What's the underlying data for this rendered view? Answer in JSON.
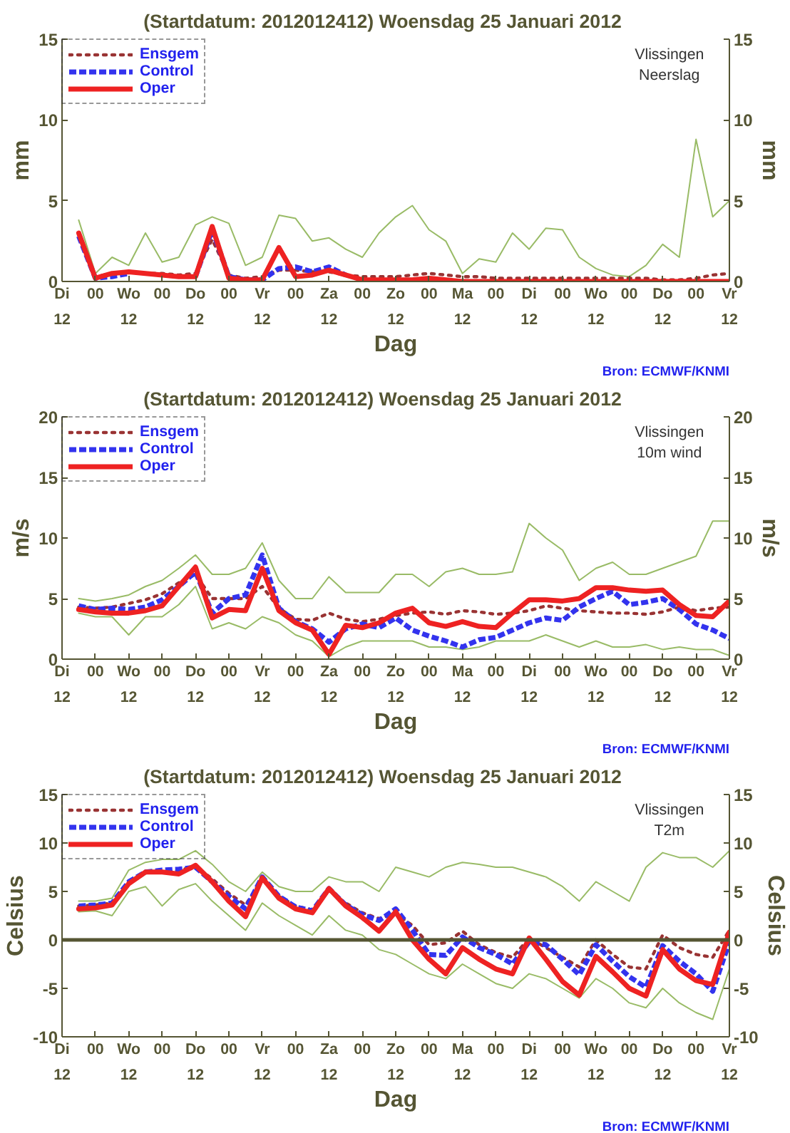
{
  "chart_data": [
    {
      "type": "line",
      "title": "(Startdatum: 2012012412)   Woensdag  25 Januari   2012",
      "xlabel": "Dag",
      "ylabel": "mm",
      "y2label": "mm",
      "annotations": [
        "Vlissingen\nNeerslag",
        "Bron: ECMWF/KNMI"
      ],
      "x": [
        "2012-01-24T18:00",
        "2012-01-25T00:00",
        "2012-01-25T06:00",
        "2012-01-25T12:00",
        "2012-01-25T18:00",
        "2012-01-26T00:00",
        "2012-01-26T06:00",
        "2012-01-26T12:00",
        "2012-01-26T18:00",
        "2012-01-27T00:00",
        "2012-01-27T06:00",
        "2012-01-27T12:00",
        "2012-01-27T18:00",
        "2012-01-28T00:00",
        "2012-01-28T06:00",
        "2012-01-28T12:00",
        "2012-01-28T18:00",
        "2012-01-29T00:00",
        "2012-01-29T06:00",
        "2012-01-29T12:00",
        "2012-01-29T18:00",
        "2012-01-30T00:00",
        "2012-01-30T06:00",
        "2012-01-30T12:00",
        "2012-01-30T18:00",
        "2012-01-31T00:00",
        "2012-01-31T06:00",
        "2012-01-31T12:00",
        "2012-01-31T18:00",
        "2012-02-01T00:00",
        "2012-02-01T06:00",
        "2012-02-01T12:00",
        "2012-02-01T18:00",
        "2012-02-02T00:00",
        "2012-02-02T06:00",
        "2012-02-02T12:00",
        "2012-02-02T18:00",
        "2012-02-03T00:00",
        "2012-02-03T06:00",
        "2012-02-03T12:00"
      ],
      "xlim": [
        "2012-01-24T12:00",
        "2012-02-03T12:00"
      ],
      "xticks": [
        {
          "value": "2012-01-24T12:00",
          "label": "Di\n12"
        },
        {
          "value": "2012-01-25T00:00",
          "label": "00"
        },
        {
          "value": "2012-01-25T12:00",
          "label": "Wo\n12"
        },
        {
          "value": "2012-01-26T00:00",
          "label": "00"
        },
        {
          "value": "2012-01-26T12:00",
          "label": "Do\n12"
        },
        {
          "value": "2012-01-27T00:00",
          "label": "00"
        },
        {
          "value": "2012-01-27T12:00",
          "label": "Vr\n12"
        },
        {
          "value": "2012-01-28T00:00",
          "label": "00"
        },
        {
          "value": "2012-01-28T12:00",
          "label": "Za\n12"
        },
        {
          "value": "2012-01-29T00:00",
          "label": "00"
        },
        {
          "value": "2012-01-29T12:00",
          "label": "Zo\n12"
        },
        {
          "value": "2012-01-30T00:00",
          "label": "00"
        },
        {
          "value": "2012-01-30T12:00",
          "label": "Ma\n12"
        },
        {
          "value": "2012-01-31T00:00",
          "label": "00"
        },
        {
          "value": "2012-01-31T12:00",
          "label": "Di\n12"
        },
        {
          "value": "2012-02-01T00:00",
          "label": "00"
        },
        {
          "value": "2012-02-01T12:00",
          "label": "Wo\n12"
        },
        {
          "value": "2012-02-02T00:00",
          "label": "00"
        },
        {
          "value": "2012-02-02T12:00",
          "label": "Do\n12"
        },
        {
          "value": "2012-02-03T00:00",
          "label": "00"
        },
        {
          "value": "2012-02-03T12:00",
          "label": "Vr\n12"
        }
      ],
      "ylim": [
        0,
        15
      ],
      "yticks": [
        0,
        5,
        10,
        15
      ],
      "y2lim": [
        0,
        15
      ],
      "y2ticks": [
        0,
        5,
        10,
        15
      ],
      "grid": false,
      "legend": "top left",
      "marker": "none",
      "series": [
        {
          "color": "#99bb66",
          "line_style": "solid",
          "values": [
            3.8,
            0.5,
            1.5,
            1.0,
            3.0,
            1.2,
            1.5,
            3.5,
            4.0,
            3.6,
            1.0,
            1.5,
            4.1,
            3.9,
            2.5,
            2.7,
            2.0,
            1.5,
            3.0,
            4.0,
            4.7,
            3.2,
            2.5,
            0.5,
            1.4,
            1.2,
            3.0,
            2.0,
            3.3,
            3.2,
            1.5,
            0.8,
            0.4,
            0.3,
            1.0,
            2.3,
            1.5,
            8.8,
            4.0,
            5.0
          ]
        },
        {
          "name": "Ensgem",
          "color": "#993333",
          "line_style": "dotted",
          "values": [
            2.9,
            0.3,
            0.5,
            0.6,
            0.5,
            0.5,
            0.4,
            0.5,
            2.6,
            0.4,
            0.2,
            0.3,
            0.7,
            0.7,
            0.6,
            0.6,
            0.4,
            0.3,
            0.3,
            0.3,
            0.4,
            0.5,
            0.4,
            0.3,
            0.3,
            0.2,
            0.2,
            0.2,
            0.2,
            0.2,
            0.2,
            0.2,
            0.2,
            0.2,
            0.2,
            0.1,
            0.1,
            0.2,
            0.4,
            0.5
          ]
        },
        {
          "name": "Control",
          "color": "#3333ee",
          "line_style": "dashed",
          "values": [
            2.8,
            0.2,
            0.3,
            0.5,
            null,
            null,
            null,
            0.3,
            3.2,
            0.3,
            0.1,
            0.1,
            0.8,
            0.9,
            0.6,
            0.9,
            0.4,
            null,
            null,
            null,
            null,
            null,
            null,
            null,
            null,
            null,
            null,
            null,
            null,
            null,
            null,
            null,
            null,
            null,
            null,
            null,
            null,
            null,
            null,
            null
          ]
        },
        {
          "name": "Oper",
          "color": "#ee2222",
          "line_style": "solid",
          "values": [
            3.0,
            0.2,
            0.5,
            0.6,
            0.5,
            0.4,
            0.3,
            0.3,
            3.4,
            0.2,
            0.1,
            0.1,
            2.1,
            0.3,
            0.4,
            0.7,
            0.4,
            0.1,
            0.1,
            0.1,
            0.1,
            0.2,
            0.1,
            0,
            0,
            0,
            0,
            0,
            0,
            0,
            0,
            0,
            0,
            0,
            0,
            0,
            0,
            0,
            0,
            0
          ]
        }
      ]
    },
    {
      "type": "line",
      "title": "(Startdatum: 2012012412)   Woensdag  25 Januari   2012",
      "xlabel": "Dag",
      "ylabel": "m/s",
      "y2label": "m/s",
      "annotations": [
        "Vlissingen\n10m wind",
        "Bron: ECMWF/KNMI"
      ],
      "x": [
        "2012-01-24T18:00",
        "2012-01-25T00:00",
        "2012-01-25T06:00",
        "2012-01-25T12:00",
        "2012-01-25T18:00",
        "2012-01-26T00:00",
        "2012-01-26T06:00",
        "2012-01-26T12:00",
        "2012-01-26T18:00",
        "2012-01-27T00:00",
        "2012-01-27T06:00",
        "2012-01-27T12:00",
        "2012-01-27T18:00",
        "2012-01-28T00:00",
        "2012-01-28T06:00",
        "2012-01-28T12:00",
        "2012-01-28T18:00",
        "2012-01-29T00:00",
        "2012-01-29T06:00",
        "2012-01-29T12:00",
        "2012-01-29T18:00",
        "2012-01-30T00:00",
        "2012-01-30T06:00",
        "2012-01-30T12:00",
        "2012-01-30T18:00",
        "2012-01-31T00:00",
        "2012-01-31T06:00",
        "2012-01-31T12:00",
        "2012-01-31T18:00",
        "2012-02-01T00:00",
        "2012-02-01T06:00",
        "2012-02-01T12:00",
        "2012-02-01T18:00",
        "2012-02-02T00:00",
        "2012-02-02T06:00",
        "2012-02-02T12:00",
        "2012-02-02T18:00",
        "2012-02-03T00:00",
        "2012-02-03T06:00",
        "2012-02-03T12:00"
      ],
      "xlim": [
        "2012-01-24T12:00",
        "2012-02-03T12:00"
      ],
      "xticks": [
        {
          "value": "2012-01-24T12:00",
          "label": "Di\n12"
        },
        {
          "value": "2012-01-25T00:00",
          "label": "00"
        },
        {
          "value": "2012-01-25T12:00",
          "label": "Wo\n12"
        },
        {
          "value": "2012-01-26T00:00",
          "label": "00"
        },
        {
          "value": "2012-01-26T12:00",
          "label": "Do\n12"
        },
        {
          "value": "2012-01-27T00:00",
          "label": "00"
        },
        {
          "value": "2012-01-27T12:00",
          "label": "Vr\n12"
        },
        {
          "value": "2012-01-28T00:00",
          "label": "00"
        },
        {
          "value": "2012-01-28T12:00",
          "label": "Za\n12"
        },
        {
          "value": "2012-01-29T00:00",
          "label": "00"
        },
        {
          "value": "2012-01-29T12:00",
          "label": "Zo\n12"
        },
        {
          "value": "2012-01-30T00:00",
          "label": "00"
        },
        {
          "value": "2012-01-30T12:00",
          "label": "Ma\n12"
        },
        {
          "value": "2012-01-31T00:00",
          "label": "00"
        },
        {
          "value": "2012-01-31T12:00",
          "label": "Di\n12"
        },
        {
          "value": "2012-02-01T00:00",
          "label": "00"
        },
        {
          "value": "2012-02-01T12:00",
          "label": "Wo\n12"
        },
        {
          "value": "2012-02-02T00:00",
          "label": "00"
        },
        {
          "value": "2012-02-02T12:00",
          "label": "Do\n12"
        },
        {
          "value": "2012-02-03T00:00",
          "label": "00"
        },
        {
          "value": "2012-02-03T12:00",
          "label": "Vr\n12"
        }
      ],
      "ylim": [
        0,
        20
      ],
      "yticks": [
        0,
        5,
        10,
        15,
        20
      ],
      "y2lim": [
        0,
        20
      ],
      "y2ticks": [
        0,
        5,
        10,
        15,
        20
      ],
      "grid": false,
      "legend": "top left",
      "marker": "none",
      "series": [
        {
          "color": "#99bb66",
          "line_style": "solid",
          "values": [
            5.0,
            4.8,
            5.0,
            5.3,
            6.0,
            6.5,
            7.5,
            8.6,
            7.0,
            7.0,
            7.5,
            9.6,
            6.5,
            5.0,
            5.0,
            6.8,
            5.5,
            5.5,
            5.5,
            7.0,
            7.0,
            6.0,
            7.2,
            7.5,
            7.0,
            7.0,
            7.2,
            11.2,
            10.0,
            9.0,
            6.5,
            7.5,
            8.0,
            7.0,
            7.0,
            7.5,
            8.0,
            8.5,
            11.4,
            11.4
          ]
        },
        {
          "color": "#99bb66",
          "line_style": "solid",
          "values": [
            3.8,
            3.5,
            3.5,
            2.0,
            3.5,
            3.5,
            4.5,
            6.0,
            2.5,
            3.0,
            2.5,
            3.5,
            3.0,
            2.0,
            1.5,
            0.2,
            1.0,
            1.5,
            1.5,
            1.5,
            1.5,
            1.0,
            1.0,
            0.8,
            1.0,
            1.5,
            1.5,
            1.5,
            2.0,
            1.5,
            1.0,
            1.5,
            1.0,
            1.0,
            1.2,
            0.8,
            1.0,
            0.8,
            0.8,
            0.3
          ]
        },
        {
          "name": "Ensgem",
          "color": "#993333",
          "line_style": "dotted",
          "values": [
            4.3,
            4.2,
            4.3,
            4.6,
            4.9,
            5.4,
            6.3,
            7.0,
            5.0,
            5.0,
            5.0,
            6.0,
            4.2,
            3.3,
            3.2,
            3.8,
            3.3,
            3.1,
            3.3,
            3.6,
            3.8,
            3.9,
            3.7,
            4.0,
            3.9,
            3.7,
            3.8,
            4.0,
            4.4,
            4.2,
            4.0,
            3.9,
            3.8,
            3.8,
            3.7,
            3.9,
            4.3,
            4.0,
            4.2,
            4.3
          ]
        },
        {
          "name": "Control",
          "color": "#3333ee",
          "line_style": "dashed",
          "values": [
            4.4,
            4.1,
            4.2,
            4.1,
            4.3,
            4.9,
            6.0,
            7.2,
            3.8,
            5.0,
            5.3,
            8.6,
            4.2,
            3.1,
            2.5,
            1.4,
            2.5,
            2.9,
            2.6,
            3.4,
            2.4,
            1.9,
            1.5,
            1.0,
            1.6,
            1.8,
            2.4,
            3.0,
            3.4,
            3.2,
            4.3,
            5.0,
            5.6,
            4.5,
            4.7,
            5.0,
            4.1,
            2.9,
            2.4,
            1.7
          ]
        },
        {
          "name": "Oper",
          "color": "#ee2222",
          "line_style": "solid",
          "values": [
            4.1,
            3.9,
            3.8,
            3.8,
            4.0,
            4.4,
            6.0,
            7.6,
            3.4,
            4.1,
            4.0,
            7.5,
            4.0,
            3.0,
            2.4,
            0.4,
            2.8,
            2.6,
            3.0,
            3.8,
            4.2,
            3.0,
            2.7,
            3.1,
            2.7,
            2.6,
            3.8,
            4.9,
            4.9,
            4.8,
            5.0,
            5.9,
            5.9,
            5.7,
            5.6,
            5.7,
            4.5,
            3.6,
            3.5,
            4.8
          ]
        }
      ]
    },
    {
      "type": "line",
      "title": "(Startdatum: 2012012412)   Woensdag  25 Januari   2012",
      "xlabel": "Dag",
      "ylabel": "Celsius",
      "y2label": "Celsius",
      "annotations": [
        "Vlissingen\nT2m",
        "Bron: ECMWF/KNMI"
      ],
      "x": [
        "2012-01-24T18:00",
        "2012-01-25T00:00",
        "2012-01-25T06:00",
        "2012-01-25T12:00",
        "2012-01-25T18:00",
        "2012-01-26T00:00",
        "2012-01-26T06:00",
        "2012-01-26T12:00",
        "2012-01-26T18:00",
        "2012-01-27T00:00",
        "2012-01-27T06:00",
        "2012-01-27T12:00",
        "2012-01-27T18:00",
        "2012-01-28T00:00",
        "2012-01-28T06:00",
        "2012-01-28T12:00",
        "2012-01-28T18:00",
        "2012-01-29T00:00",
        "2012-01-29T06:00",
        "2012-01-29T12:00",
        "2012-01-29T18:00",
        "2012-01-30T00:00",
        "2012-01-30T06:00",
        "2012-01-30T12:00",
        "2012-01-30T18:00",
        "2012-01-31T00:00",
        "2012-01-31T06:00",
        "2012-01-31T12:00",
        "2012-01-31T18:00",
        "2012-02-01T00:00",
        "2012-02-01T06:00",
        "2012-02-01T12:00",
        "2012-02-01T18:00",
        "2012-02-02T00:00",
        "2012-02-02T06:00",
        "2012-02-02T12:00",
        "2012-02-02T18:00",
        "2012-02-03T00:00",
        "2012-02-03T06:00",
        "2012-02-03T12:00"
      ],
      "xlim": [
        "2012-01-24T12:00",
        "2012-02-03T12:00"
      ],
      "xticks": [
        {
          "value": "2012-01-24T12:00",
          "label": "Di\n12"
        },
        {
          "value": "2012-01-25T00:00",
          "label": "00"
        },
        {
          "value": "2012-01-25T12:00",
          "label": "Wo\n12"
        },
        {
          "value": "2012-01-26T00:00",
          "label": "00"
        },
        {
          "value": "2012-01-26T12:00",
          "label": "Do\n12"
        },
        {
          "value": "2012-01-27T00:00",
          "label": "00"
        },
        {
          "value": "2012-01-27T12:00",
          "label": "Vr\n12"
        },
        {
          "value": "2012-01-28T00:00",
          "label": "00"
        },
        {
          "value": "2012-01-28T12:00",
          "label": "Za\n12"
        },
        {
          "value": "2012-01-29T00:00",
          "label": "00"
        },
        {
          "value": "2012-01-29T12:00",
          "label": "Zo\n12"
        },
        {
          "value": "2012-01-30T00:00",
          "label": "00"
        },
        {
          "value": "2012-01-30T12:00",
          "label": "Ma\n12"
        },
        {
          "value": "2012-01-31T00:00",
          "label": "00"
        },
        {
          "value": "2012-01-31T12:00",
          "label": "Di\n12"
        },
        {
          "value": "2012-02-01T00:00",
          "label": "00"
        },
        {
          "value": "2012-02-01T12:00",
          "label": "Wo\n12"
        },
        {
          "value": "2012-02-02T00:00",
          "label": "00"
        },
        {
          "value": "2012-02-02T12:00",
          "label": "Do\n12"
        },
        {
          "value": "2012-02-03T00:00",
          "label": "00"
        },
        {
          "value": "2012-02-03T12:00",
          "label": "Vr\n12"
        }
      ],
      "ylim": [
        -10,
        15
      ],
      "yticks": [
        -10,
        -5,
        0,
        5,
        10,
        15
      ],
      "y2lim": [
        -10,
        15
      ],
      "y2ticks": [
        -10,
        -5,
        0,
        5,
        10,
        15
      ],
      "grid": false,
      "legend": "top left",
      "marker": "none",
      "ref_lines": [
        {
          "axis": "y",
          "value": 0,
          "color": "#555533"
        }
      ],
      "series": [
        {
          "color": "#99bb66",
          "line_style": "solid",
          "values": [
            4.0,
            4.0,
            4.3,
            7.2,
            8.0,
            8.3,
            8.3,
            9.2,
            7.8,
            6.0,
            5.0,
            7.0,
            5.5,
            5.0,
            5.0,
            6.5,
            6.0,
            6.0,
            5.0,
            7.5,
            7.0,
            6.5,
            7.5,
            8.0,
            7.8,
            7.5,
            7.5,
            7.0,
            6.5,
            5.5,
            4.0,
            6.0,
            5.0,
            4.0,
            7.5,
            9.0,
            8.5,
            8.5,
            7.5,
            9.2
          ]
        },
        {
          "color": "#99bb66",
          "line_style": "solid",
          "values": [
            2.9,
            3.0,
            2.5,
            5.0,
            5.5,
            3.5,
            5.2,
            5.8,
            4.0,
            2.5,
            1.0,
            3.8,
            2.5,
            1.5,
            0.5,
            2.5,
            1.0,
            0.5,
            -1.0,
            -1.5,
            -2.5,
            -3.5,
            -4.0,
            -2.5,
            -3.5,
            -4.5,
            -5.0,
            -3.5,
            -4.0,
            -5.0,
            -6.0,
            -4.0,
            -5.0,
            -6.5,
            -7.0,
            -5.0,
            -6.5,
            -7.5,
            -8.2,
            -3.0
          ]
        },
        {
          "name": "Ensgem",
          "color": "#993333",
          "line_style": "dotted",
          "values": [
            3.5,
            3.6,
            3.8,
            6.0,
            7.0,
            7.0,
            7.2,
            7.6,
            6.3,
            4.8,
            3.6,
            6.3,
            4.5,
            3.5,
            3.1,
            5.1,
            3.8,
            2.8,
            2.2,
            2.7,
            1.5,
            -0.5,
            -0.3,
            0.9,
            -0.5,
            -1.3,
            -1.8,
            0.2,
            -0.8,
            -1.8,
            -2.8,
            0.0,
            -1.5,
            -2.8,
            -3.0,
            0.5,
            -0.8,
            -1.5,
            -1.8,
            1.0
          ]
        },
        {
          "name": "Control",
          "color": "#3333ee",
          "line_style": "dashed",
          "values": [
            3.5,
            3.6,
            3.8,
            6.0,
            7.0,
            7.2,
            7.3,
            7.5,
            6.0,
            4.5,
            3.2,
            6.5,
            4.5,
            3.4,
            3.0,
            5.3,
            3.6,
            2.6,
            2.0,
            3.2,
            1.0,
            -1.5,
            -1.6,
            0.3,
            -0.8,
            -1.5,
            -2.5,
            -0.2,
            -0.5,
            -2.0,
            -3.6,
            -0.5,
            -2.2,
            -3.8,
            -4.9,
            -0.6,
            -2.2,
            -3.5,
            -5.3,
            -0.2
          ]
        },
        {
          "name": "Oper",
          "color": "#ee2222",
          "line_style": "solid",
          "values": [
            3.2,
            3.3,
            3.6,
            5.8,
            7.0,
            7.0,
            6.8,
            7.7,
            6.0,
            4.0,
            2.4,
            6.4,
            4.3,
            3.2,
            2.8,
            5.3,
            3.5,
            2.3,
            0.9,
            2.9,
            0.0,
            -2.0,
            -3.5,
            -0.8,
            -2.0,
            -3.0,
            -3.5,
            0.2,
            -2.0,
            -4.3,
            -5.7,
            -1.7,
            -3.3,
            -5.0,
            -5.8,
            -1.0,
            -3.0,
            -4.2,
            -4.6,
            0.8
          ]
        }
      ]
    }
  ]
}
